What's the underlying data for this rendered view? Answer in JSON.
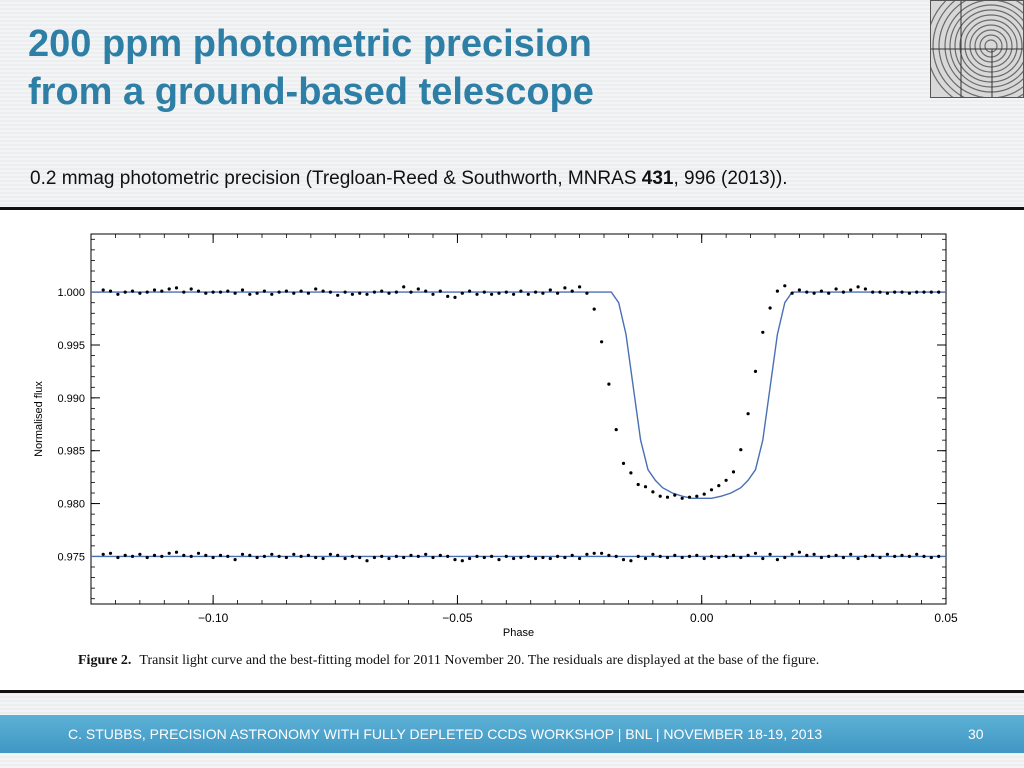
{
  "slide": {
    "title_line1": "200 ppm photometric precision",
    "title_line2": "from a ground-based telescope",
    "subtitle_pre": "0.2 mmag photometric precision (Tregloan-Reed & Southworth, MNRAS ",
    "subtitle_bold": "431",
    "subtitle_post": ", 996 (2013)).",
    "footer_text": "C. STUBBS, PRECISION ASTRONOMY WITH FULLY DEPLETED CCDS WORKSHOP  | BNL | NOVEMBER 18-19, 2013",
    "page_number": "30"
  },
  "colors": {
    "title": "#2e7fa6",
    "model_line": "#4a6fb5",
    "points": "#000000",
    "footer": "#4aa3cc"
  },
  "figure": {
    "caption_label": "Figure 2.",
    "caption_text": "Transit light curve and the best-fitting model for 2011 November 20. The residuals are displayed at the base of the figure."
  },
  "chart_data": {
    "type": "scatter",
    "xlabel": "Phase",
    "ylabel": "Normalised flux",
    "xlim": [
      -0.125,
      0.05
    ],
    "ylim": [
      0.9705,
      1.0055
    ],
    "x_ticks": [
      -0.1,
      -0.05,
      0.0,
      0.05
    ],
    "x_tick_labels": [
      "−0.10",
      "−0.05",
      "0.00",
      "0.05"
    ],
    "y_ticks": [
      1.0,
      0.995,
      0.99,
      0.985,
      0.98,
      0.975
    ],
    "y_tick_labels": [
      "1.000",
      "0.995",
      "0.990",
      "0.985",
      "0.980",
      "0.975"
    ],
    "grid": false,
    "residual_offset": 0.975,
    "transit_model": {
      "description": "best-fitting model",
      "phase_x": [
        -0.125,
        -0.0185,
        -0.017,
        -0.0155,
        -0.014,
        -0.0125,
        -0.011,
        -0.0095,
        -0.008,
        -0.006,
        -0.004,
        -0.002,
        0.0,
        0.002,
        0.004,
        0.006,
        0.008,
        0.0095,
        0.011,
        0.0125,
        0.014,
        0.0155,
        0.017,
        0.0185,
        0.05
      ],
      "flux": [
        1.0,
        1.0,
        0.999,
        0.996,
        0.991,
        0.986,
        0.9832,
        0.9822,
        0.9815,
        0.981,
        0.9807,
        0.9805,
        0.9805,
        0.9805,
        0.9807,
        0.981,
        0.9815,
        0.9822,
        0.9832,
        0.986,
        0.991,
        0.996,
        0.999,
        1.0,
        1.0
      ]
    },
    "series": [
      {
        "label": "data",
        "x": [
          -0.1225,
          -0.121,
          -0.1195,
          -0.118,
          -0.1165,
          -0.115,
          -0.1135,
          -0.112,
          -0.1105,
          -0.109,
          -0.1075,
          -0.106,
          -0.1045,
          -0.103,
          -0.1015,
          -0.1,
          -0.0985,
          -0.097,
          -0.0955,
          -0.094,
          -0.0925,
          -0.091,
          -0.0895,
          -0.088,
          -0.0865,
          -0.085,
          -0.0835,
          -0.082,
          -0.0805,
          -0.079,
          -0.0775,
          -0.076,
          -0.0745,
          -0.073,
          -0.0715,
          -0.07,
          -0.0685,
          -0.067,
          -0.0655,
          -0.064,
          -0.0625,
          -0.061,
          -0.0595,
          -0.058,
          -0.0565,
          -0.055,
          -0.0535,
          -0.052,
          -0.0505,
          -0.049,
          -0.0475,
          -0.046,
          -0.0445,
          -0.043,
          -0.0415,
          -0.04,
          -0.0385,
          -0.037,
          -0.0355,
          -0.034,
          -0.0325,
          -0.031,
          -0.0295,
          -0.028,
          -0.0265,
          -0.025,
          -0.0235,
          -0.022,
          -0.0205,
          -0.019,
          -0.0175,
          -0.016,
          -0.0145,
          -0.013,
          -0.0115,
          -0.01,
          -0.0085,
          -0.007,
          -0.0055,
          -0.004,
          -0.0025,
          -0.001,
          0.0005,
          0.002,
          0.0035,
          0.005,
          0.0065,
          0.008,
          0.0095,
          0.011,
          0.0125,
          0.014,
          0.0155,
          0.017,
          0.0185,
          0.02,
          0.0215,
          0.023,
          0.0245,
          0.026,
          0.0275,
          0.029,
          0.0305,
          0.032,
          0.0335,
          0.035,
          0.0365,
          0.038,
          0.0395,
          0.041,
          0.0425,
          0.044,
          0.0455,
          0.047,
          0.0485
        ],
        "y": [
          1.0002,
          1.0001,
          0.9998,
          1.0,
          1.0001,
          0.9999,
          1.0,
          1.0002,
          1.0001,
          1.0003,
          1.0004,
          1.0,
          1.0003,
          1.0001,
          0.9999,
          1.0,
          1.0,
          1.0001,
          0.9999,
          1.0002,
          0.9998,
          0.9999,
          1.0001,
          0.9998,
          1.0,
          1.0001,
          0.9999,
          1.0001,
          0.9999,
          1.0003,
          1.0001,
          1.0,
          0.9997,
          1.0,
          0.9998,
          0.9999,
          0.9998,
          1.0,
          1.0001,
          0.9999,
          1.0,
          1.0005,
          1.0,
          1.0003,
          1.0001,
          0.9998,
          1.0001,
          0.9996,
          0.9995,
          0.9999,
          1.0001,
          0.9998,
          1.0,
          0.9998,
          0.9999,
          1.0,
          0.9998,
          1.0001,
          0.9998,
          1.0,
          0.9999,
          1.0002,
          0.9999,
          1.0004,
          1.0001,
          1.0005,
          0.9999,
          0.9984,
          0.9953,
          0.9913,
          0.987,
          0.9838,
          0.9829,
          0.9818,
          0.9816,
          0.9811,
          0.9807,
          0.9806,
          0.9808,
          0.9805,
          0.9806,
          0.9807,
          0.9809,
          0.9813,
          0.9817,
          0.9822,
          0.983,
          0.9851,
          0.9885,
          0.9925,
          0.9962,
          0.9985,
          1.0001,
          1.0006,
          0.9999,
          1.0002,
          1.0,
          0.9999,
          1.0001,
          0.9999,
          1.0003,
          1.0,
          1.0002,
          1.0005,
          1.0003,
          1.0,
          1.0,
          0.9999,
          1.0,
          1.0,
          0.9999,
          1.0,
          1.0,
          1.0,
          1.0
        ]
      },
      {
        "label": "residuals",
        "x": [
          -0.1225,
          -0.121,
          -0.1195,
          -0.118,
          -0.1165,
          -0.115,
          -0.1135,
          -0.112,
          -0.1105,
          -0.109,
          -0.1075,
          -0.106,
          -0.1045,
          -0.103,
          -0.1015,
          -0.1,
          -0.0985,
          -0.097,
          -0.0955,
          -0.094,
          -0.0925,
          -0.091,
          -0.0895,
          -0.088,
          -0.0865,
          -0.085,
          -0.0835,
          -0.082,
          -0.0805,
          -0.079,
          -0.0775,
          -0.076,
          -0.0745,
          -0.073,
          -0.0715,
          -0.07,
          -0.0685,
          -0.067,
          -0.0655,
          -0.064,
          -0.0625,
          -0.061,
          -0.0595,
          -0.058,
          -0.0565,
          -0.055,
          -0.0535,
          -0.052,
          -0.0505,
          -0.049,
          -0.0475,
          -0.046,
          -0.0445,
          -0.043,
          -0.0415,
          -0.04,
          -0.0385,
          -0.037,
          -0.0355,
          -0.034,
          -0.0325,
          -0.031,
          -0.0295,
          -0.028,
          -0.0265,
          -0.025,
          -0.0235,
          -0.022,
          -0.0205,
          -0.019,
          -0.0175,
          -0.016,
          -0.0145,
          -0.013,
          -0.0115,
          -0.01,
          -0.0085,
          -0.007,
          -0.0055,
          -0.004,
          -0.0025,
          -0.001,
          0.0005,
          0.002,
          0.0035,
          0.005,
          0.0065,
          0.008,
          0.0095,
          0.011,
          0.0125,
          0.014,
          0.0155,
          0.017,
          0.0185,
          0.02,
          0.0215,
          0.023,
          0.0245,
          0.026,
          0.0275,
          0.029,
          0.0305,
          0.032,
          0.0335,
          0.035,
          0.0365,
          0.038,
          0.0395,
          0.041,
          0.0425,
          0.044,
          0.0455,
          0.047,
          0.0485
        ],
        "y": [
          0.9752,
          0.9753,
          0.9749,
          0.9751,
          0.975,
          0.9752,
          0.9749,
          0.9751,
          0.975,
          0.9753,
          0.9754,
          0.9751,
          0.975,
          0.9753,
          0.9751,
          0.9749,
          0.9751,
          0.975,
          0.9747,
          0.9752,
          0.9751,
          0.9749,
          0.975,
          0.9752,
          0.975,
          0.9749,
          0.9752,
          0.975,
          0.9751,
          0.9749,
          0.9748,
          0.9752,
          0.9751,
          0.9748,
          0.975,
          0.9749,
          0.9746,
          0.9749,
          0.975,
          0.9748,
          0.975,
          0.9749,
          0.9751,
          0.975,
          0.9752,
          0.9749,
          0.9751,
          0.975,
          0.9747,
          0.9746,
          0.9748,
          0.975,
          0.9749,
          0.975,
          0.9747,
          0.975,
          0.9748,
          0.9749,
          0.975,
          0.9748,
          0.9749,
          0.9748,
          0.975,
          0.9749,
          0.9751,
          0.9748,
          0.9752,
          0.9753,
          0.9753,
          0.9751,
          0.975,
          0.9747,
          0.9746,
          0.975,
          0.9748,
          0.9752,
          0.975,
          0.9749,
          0.9751,
          0.9749,
          0.975,
          0.9751,
          0.9748,
          0.975,
          0.9749,
          0.975,
          0.9751,
          0.9749,
          0.9751,
          0.9753,
          0.9748,
          0.9752,
          0.9747,
          0.9749,
          0.9752,
          0.9754,
          0.9751,
          0.9752,
          0.9749,
          0.975,
          0.9751,
          0.9749,
          0.9752,
          0.9748,
          0.975,
          0.9751,
          0.9749,
          0.9752,
          0.975,
          0.9751,
          0.975,
          0.9752,
          0.975,
          0.9749,
          0.975
        ]
      }
    ]
  }
}
